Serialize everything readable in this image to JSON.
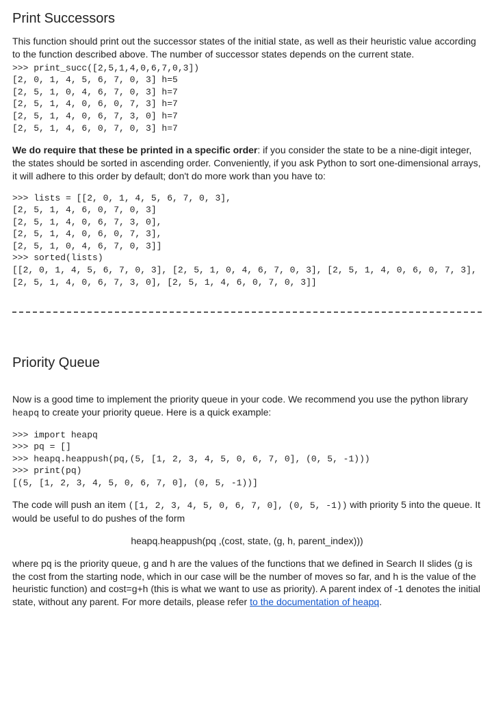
{
  "section1": {
    "title": "Print Successors",
    "intro": "This function should print out the successor states of the initial state, as well as their heuristic value according to the function described above. The number of successor states depends on the current state.",
    "code1": ">>> print_succ([2,5,1,4,0,6,7,0,3])\n[2, 0, 1, 4, 5, 6, 7, 0, 3] h=5\n[2, 5, 1, 0, 4, 6, 7, 0, 3] h=7\n[2, 5, 1, 4, 0, 6, 0, 7, 3] h=7\n[2, 5, 1, 4, 0, 6, 7, 3, 0] h=7\n[2, 5, 1, 4, 6, 0, 7, 0, 3] h=7",
    "order_lead_bold": "We do require that these be printed in a specific order",
    "order_tail": ": if you consider the state to be a nine-digit integer, the states should be sorted in ascending order. Conveniently, if you ask Python to sort one-dimensional arrays, it will adhere to this order by default; don't do more work than you have to:",
    "code2": ">>> lists = [[2, 0, 1, 4, 5, 6, 7, 0, 3],\n[2, 5, 1, 4, 6, 0, 7, 0, 3]\n[2, 5, 1, 4, 0, 6, 7, 3, 0],\n[2, 5, 1, 4, 0, 6, 0, 7, 3],\n[2, 5, 1, 0, 4, 6, 7, 0, 3]]\n>>> sorted(lists)\n[[2, 0, 1, 4, 5, 6, 7, 0, 3], [2, 5, 1, 0, 4, 6, 7, 0, 3], [2, 5, 1, 4, 0, 6, 0, 7, 3], [2, 5, 1, 4, 0, 6, 7, 3, 0], [2, 5, 1, 4, 6, 0, 7, 0, 3]]"
  },
  "section2": {
    "title": "Priority Queue",
    "intro_pre": "Now is a good time to implement the priority queue in your code. We recommend you use the python library ",
    "intro_code": "heapq",
    "intro_post": " to create your priority queue. Here is a quick example:",
    "code1": ">>> import heapq\n>>> pq = []\n>>> heapq.heappush(pq,(5, [1, 2, 3, 4, 5, 0, 6, 7, 0], (0, 5, -1)))\n>>> print(pq)\n[(5, [1, 2, 3, 4, 5, 0, 6, 7, 0], (0, 5, -1))]",
    "push_pre": "The code will push an item ",
    "push_code": "([1, 2, 3, 4, 5, 0, 6, 7, 0], (0, 5, -1))",
    "push_post": " with priority 5 into the queue. It would be useful to do pushes of the form",
    "center_line": "heapq.heappush(pq ,(cost, state, (g, h, parent_index)))",
    "tail_text": "where pq is the priority queue, g and h are the values of the functions that we defined in Search II slides (g is the cost from the starting node, which in our case will be the number of moves so far, and h is the value of the heuristic function) and cost=g+h (this is what we want to use as priority). A parent index of -1 denotes the initial state, without any parent. For more details, please refer ",
    "link1": "to the documentation of heapq",
    "tail_end": "."
  }
}
